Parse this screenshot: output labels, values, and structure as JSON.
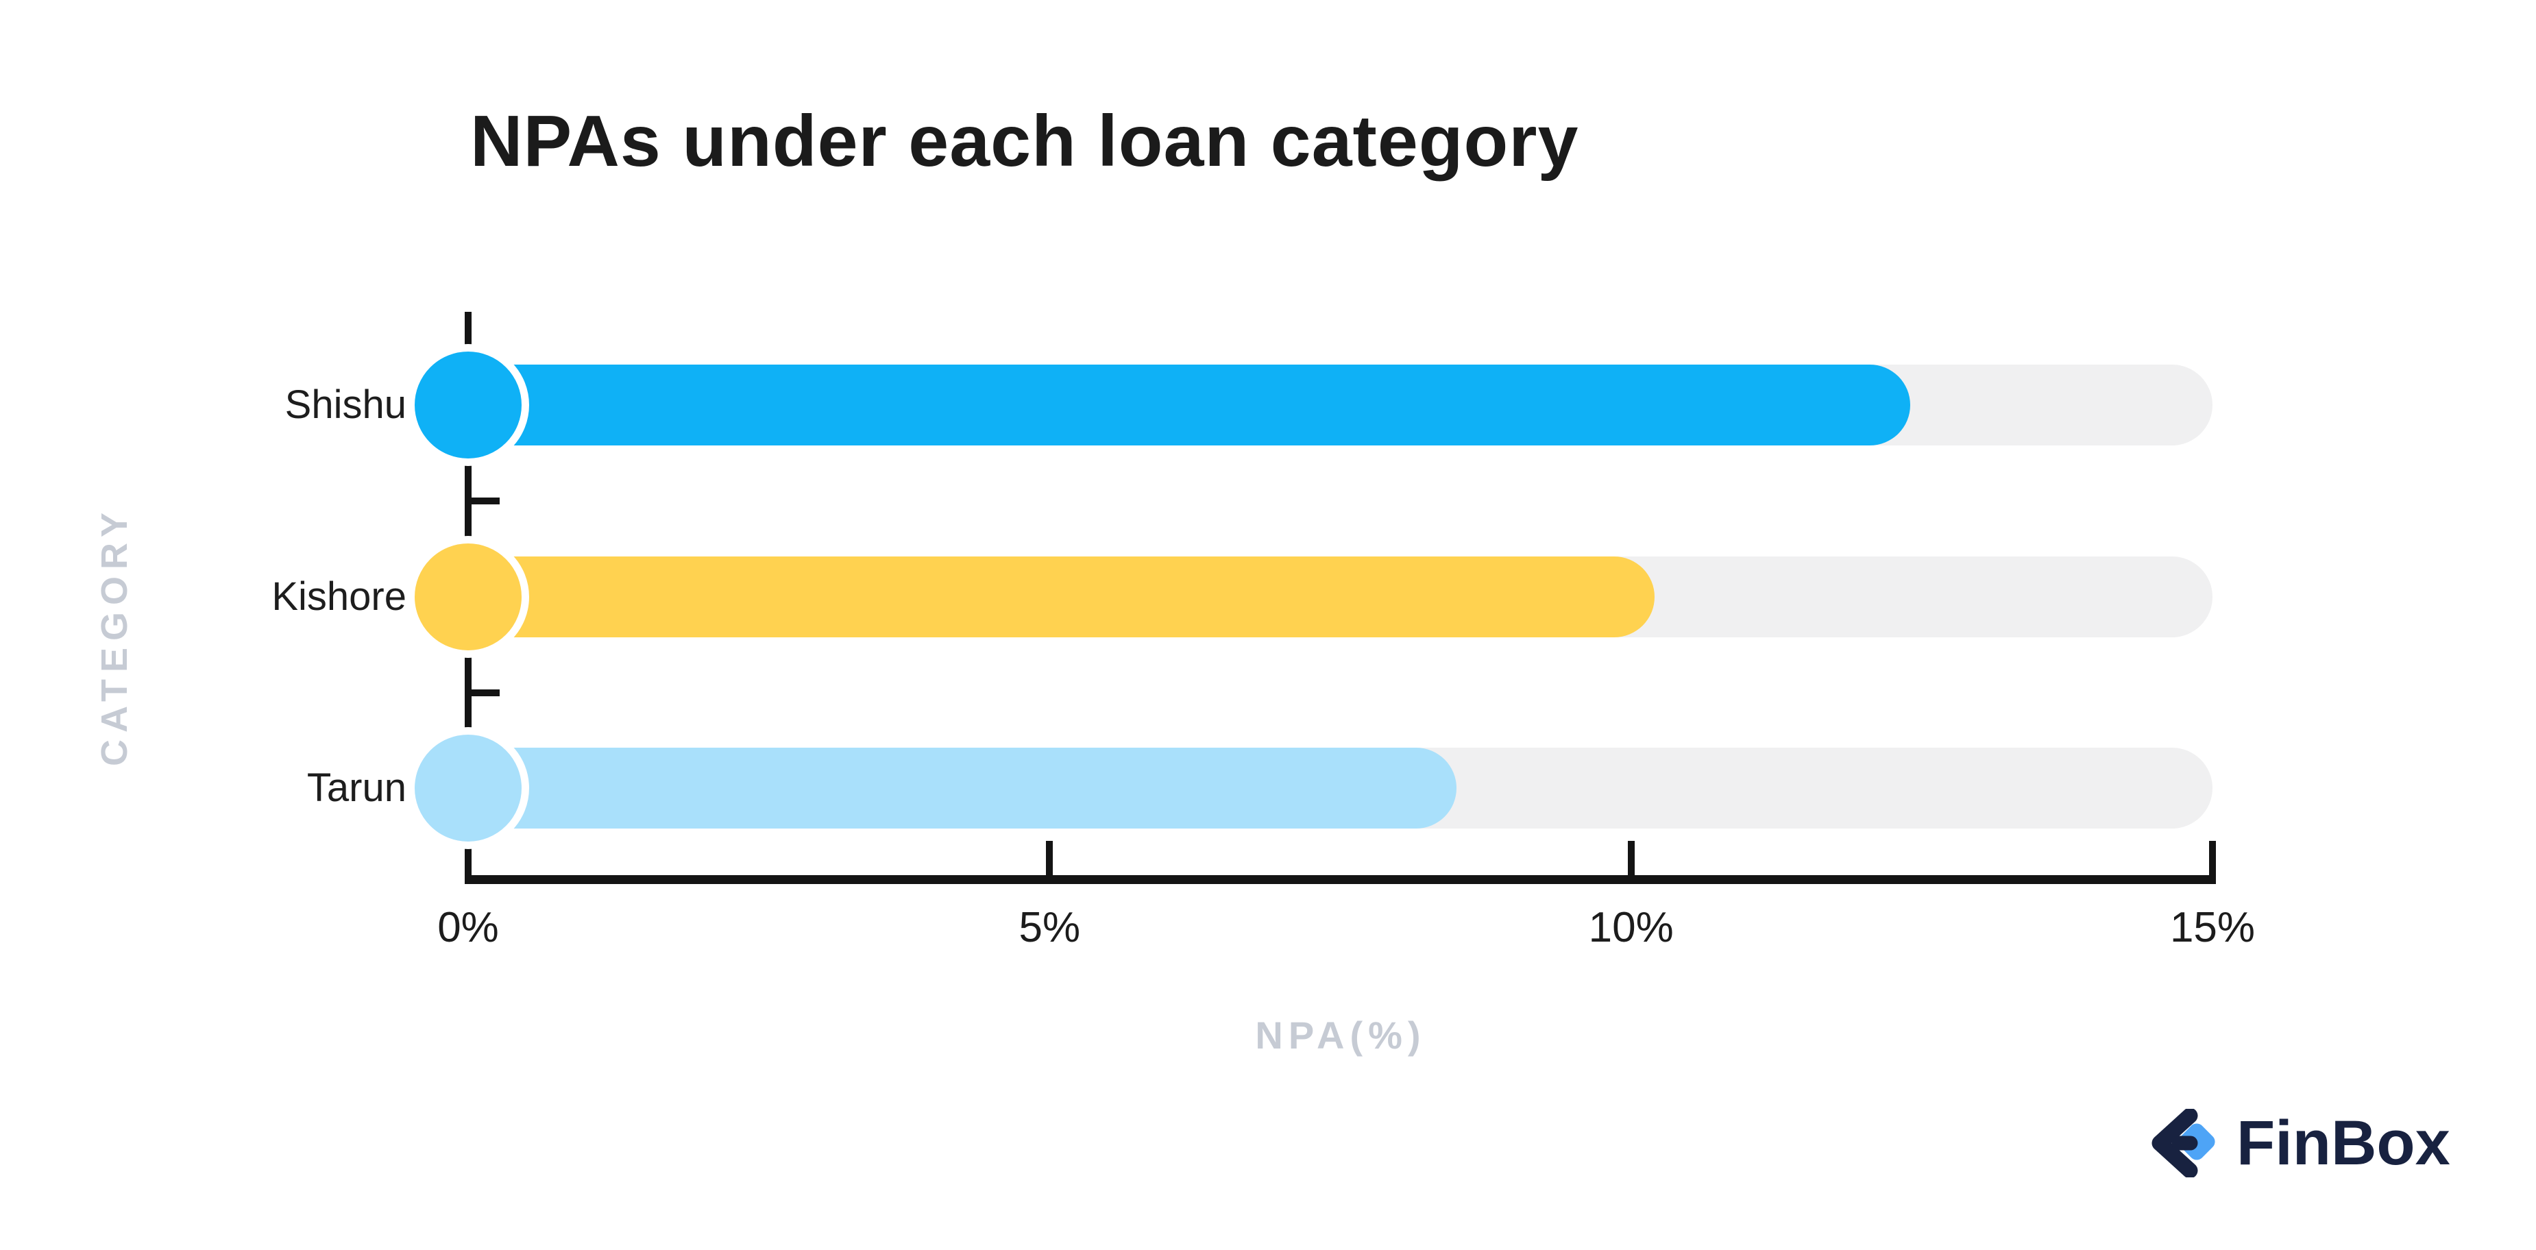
{
  "title": "NPAs under each loan category",
  "chart_data": {
    "type": "bar",
    "orientation": "horizontal",
    "title": "NPAs under each loan category",
    "categories": [
      "Shishu",
      "Kishore",
      "Tarun"
    ],
    "values": [
      12.4,
      10.2,
      8.5
    ],
    "xlabel": "NPA(%)",
    "ylabel": "CATEGORY",
    "xlim": [
      0,
      15
    ],
    "xticks": [
      {
        "value": 0,
        "label": "0%"
      },
      {
        "value": 5,
        "label": "5%"
      },
      {
        "value": 10,
        "label": "10%"
      },
      {
        "value": 15,
        "label": "15%"
      }
    ],
    "grid": false,
    "legend": false,
    "bar_colors": [
      "#0FB1F6",
      "#FFD250",
      "#A9E0FB"
    ],
    "track_color": "#F0F0F1",
    "axis_color": "#141414",
    "muted_label_color": "#C6CBD4"
  },
  "branding": {
    "logo_text": "FinBox",
    "logo_navy": "#182240",
    "logo_blue": "#4EA4F6"
  }
}
